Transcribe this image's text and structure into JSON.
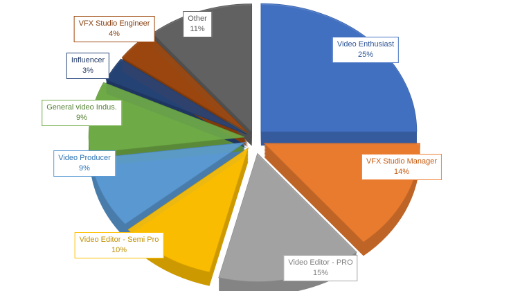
{
  "chart_data": {
    "type": "pie",
    "style": "3d-exploded",
    "title": "",
    "categories": [
      "Video Enthusiast",
      "VFX Studio Manager",
      "Video Editor - PRO",
      "Video Editor - Semi Pro",
      "Video Producer",
      "General video Indus.",
      "Influencer",
      "VFX Studio Engineer",
      "Other"
    ],
    "values": [
      25,
      14,
      15,
      10,
      9,
      9,
      3,
      4,
      11
    ],
    "data_labels": [
      "25%",
      "14%",
      "15%",
      "10%",
      "9%",
      "9%",
      "3%",
      "4%",
      "11%"
    ],
    "colors": [
      "#4472C4",
      "#ED7D31",
      "#A5A5A5",
      "#FFC000",
      "#5B9BD5",
      "#70AD47",
      "#264478",
      "#9E480E",
      "#636363"
    ],
    "label_text_colors": [
      "#2F5597",
      "#C55A11",
      "#7F7F7F",
      "#BF9000",
      "#2E75B6",
      "#548235",
      "#203864",
      "#843C0C",
      "#595959"
    ],
    "legend": "none"
  }
}
